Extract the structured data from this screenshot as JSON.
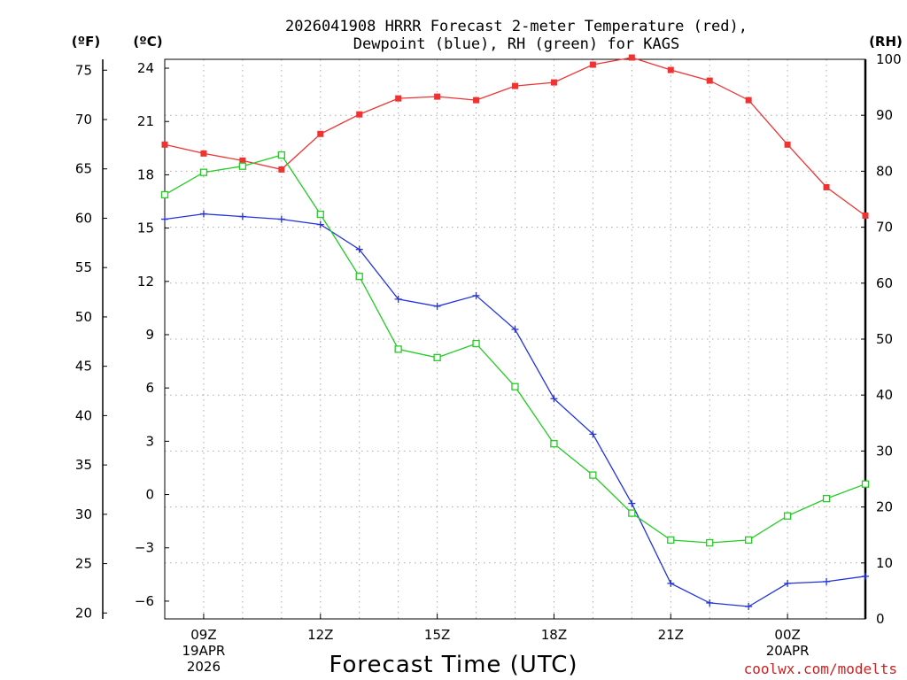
{
  "chart_data": {
    "type": "line",
    "title_line1": "2026041908 HRRR Forecast 2-meter Temperature (red),",
    "title_line2": "Dewpoint (blue), RH (green) for KAGS",
    "xlabel": "Forecast Time (UTC)",
    "credit": "coolwx.com/modelts",
    "units": {
      "fahrenheit": "(ºF)",
      "celsius": "(ºC)",
      "rh": "(RH)"
    },
    "x_range": [
      8,
      26
    ],
    "x_hours": [
      8,
      9,
      10,
      11,
      12,
      13,
      14,
      15,
      16,
      17,
      18,
      19,
      20,
      21,
      22,
      23,
      24,
      25,
      26
    ],
    "x_ticks": [
      {
        "hour": 9,
        "lines": [
          "09Z",
          "19APR",
          "2026"
        ]
      },
      {
        "hour": 12,
        "lines": [
          "12Z"
        ]
      },
      {
        "hour": 15,
        "lines": [
          "15Z"
        ]
      },
      {
        "hour": 18,
        "lines": [
          "18Z"
        ]
      },
      {
        "hour": 21,
        "lines": [
          "21Z"
        ]
      },
      {
        "hour": 24,
        "lines": [
          "00Z",
          "20APR"
        ]
      }
    ],
    "celsius_axis": {
      "range": [
        -7,
        24.5
      ],
      "ticks": [
        "24",
        "21",
        "18",
        "15",
        "12",
        "9",
        "6",
        "3",
        "0",
        "−3",
        "−6"
      ],
      "tick_values": [
        24,
        21,
        18,
        15,
        12,
        9,
        6,
        3,
        0,
        -3,
        -6
      ]
    },
    "fahrenheit_axis": {
      "ticks": [
        "75",
        "70",
        "65",
        "60",
        "55",
        "50",
        "45",
        "40",
        "35",
        "30",
        "25",
        "20"
      ],
      "tick_values": [
        75,
        70,
        65,
        60,
        55,
        50,
        45,
        40,
        35,
        30,
        25,
        20
      ]
    },
    "rh_axis": {
      "range": [
        0,
        100
      ],
      "ticks": [
        "100",
        "90",
        "80",
        "70",
        "60",
        "50",
        "40",
        "30",
        "20",
        "10",
        "0"
      ],
      "tick_values": [
        100,
        90,
        80,
        70,
        60,
        50,
        40,
        30,
        20,
        10,
        0
      ]
    },
    "series": [
      {
        "name": "Temperature",
        "axis": "celsius",
        "color": "#ee3333",
        "marker": "filled-square",
        "values": [
          19.7,
          19.2,
          18.8,
          18.3,
          20.3,
          21.4,
          22.3,
          22.4,
          22.2,
          23.0,
          23.2,
          24.2,
          24.6,
          23.9,
          23.3,
          22.2,
          19.7,
          17.3,
          15.7
        ]
      },
      {
        "name": "Dewpoint",
        "axis": "celsius",
        "color": "#2233dd",
        "marker": "plus",
        "values": [
          15.5,
          15.8,
          15.65,
          15.5,
          15.2,
          13.8,
          11.0,
          10.6,
          11.2,
          9.3,
          5.4,
          3.4,
          -0.5,
          -5.0,
          -6.1,
          -6.3,
          -5.0,
          -4.9,
          -4.6
        ]
      },
      {
        "name": "RH",
        "axis": "rh",
        "color": "#22cc22",
        "marker": "open-square",
        "values": [
          75.8,
          79.8,
          80.9,
          82.9,
          72.3,
          61.2,
          48.2,
          46.7,
          49.2,
          41.5,
          31.3,
          25.7,
          18.9,
          14.1,
          13.6,
          14.1,
          18.4,
          21.5,
          24.1
        ]
      }
    ],
    "grid": true
  }
}
